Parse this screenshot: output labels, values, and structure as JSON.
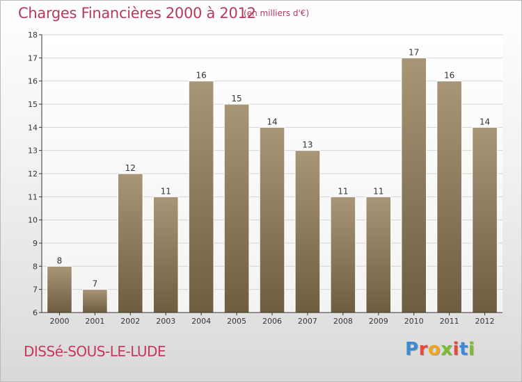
{
  "header": {
    "title": "Charges Financières 2000 à 2012",
    "subtitle": "(en milliers d'€)"
  },
  "footer": {
    "city": "DISSé-SOUS-LE-LUDE",
    "logo_letters": [
      "P",
      "r",
      "o",
      "x",
      "i",
      "t",
      "i"
    ],
    "logo_colors": [
      "#3a8ad6",
      "#e8473a",
      "#f2a51c",
      "#7bbb2f",
      "#e8473a",
      "#3a8ad6",
      "#7bbb2f"
    ]
  },
  "colors": {
    "bar_top": "#a89677",
    "bar_bottom": "#6f5d40",
    "grid": "#d4d4d4",
    "axis": "#333333"
  },
  "chart_data": {
    "type": "bar",
    "categories": [
      "2000",
      "2001",
      "2002",
      "2003",
      "2004",
      "2005",
      "2006",
      "2007",
      "2008",
      "2009",
      "2010",
      "2011",
      "2012"
    ],
    "values": [
      8,
      7,
      12,
      11,
      16,
      15,
      14,
      13,
      11,
      11,
      17,
      16,
      14
    ],
    "data_labels": [
      "8",
      "7",
      "12",
      "11",
      "16",
      "15",
      "14",
      "13",
      "11",
      "11",
      "17",
      "16",
      "14"
    ],
    "ylim": [
      6,
      18
    ],
    "yticks": [
      "6",
      "7",
      "8",
      "9",
      "10",
      "11",
      "12",
      "13",
      "14",
      "15",
      "16",
      "17",
      "18"
    ],
    "grid": true,
    "legend": "none"
  }
}
